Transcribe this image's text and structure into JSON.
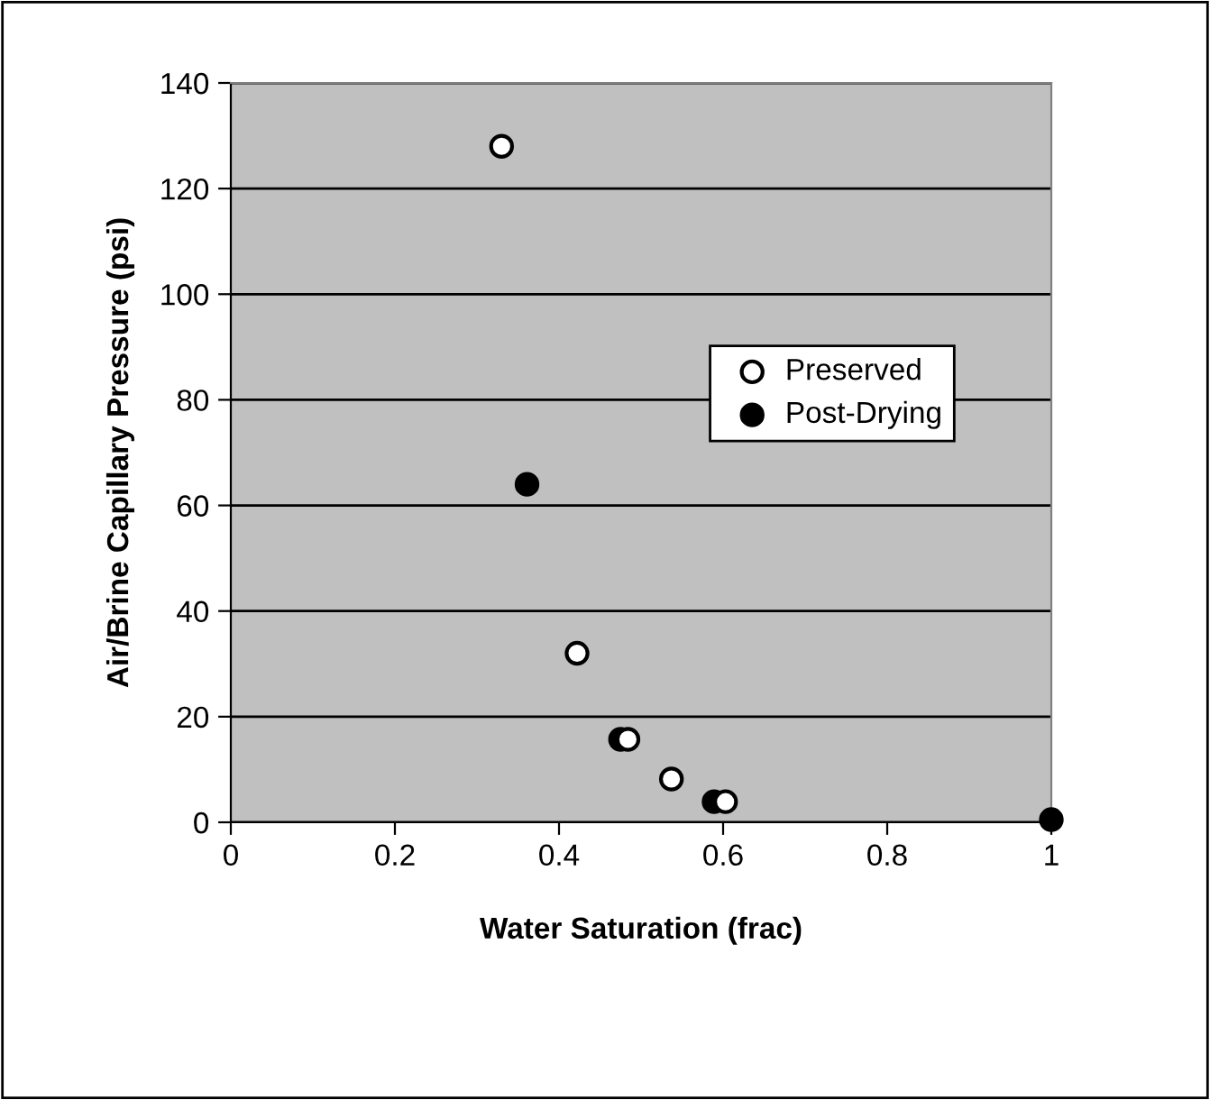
{
  "chart_data": {
    "type": "scatter",
    "xlabel": "Water Saturation (frac)",
    "ylabel": "Air/Brine Capillary Pressure (psi)",
    "xlim": [
      0,
      1
    ],
    "xticks": [
      0,
      0.2,
      0.4,
      0.6,
      0.8,
      1
    ],
    "ylim": [
      0,
      140
    ],
    "yticks": [
      0,
      20,
      40,
      60,
      80,
      100,
      120,
      140
    ],
    "grid": "y",
    "legend": "right",
    "marker": "circle",
    "series": [
      {
        "name": "Preserved",
        "color": "#ffffff",
        "x": [
          0.33,
          0.422,
          0.484,
          0.537,
          0.603
        ],
        "values": [
          128,
          32,
          15.7,
          8.2,
          3.9
        ]
      },
      {
        "name": "Post-Drying",
        "color": "#000000",
        "x": [
          0.361,
          0.475,
          0.589,
          1.0
        ],
        "values": [
          64,
          15.7,
          3.9,
          0.5
        ]
      }
    ]
  }
}
